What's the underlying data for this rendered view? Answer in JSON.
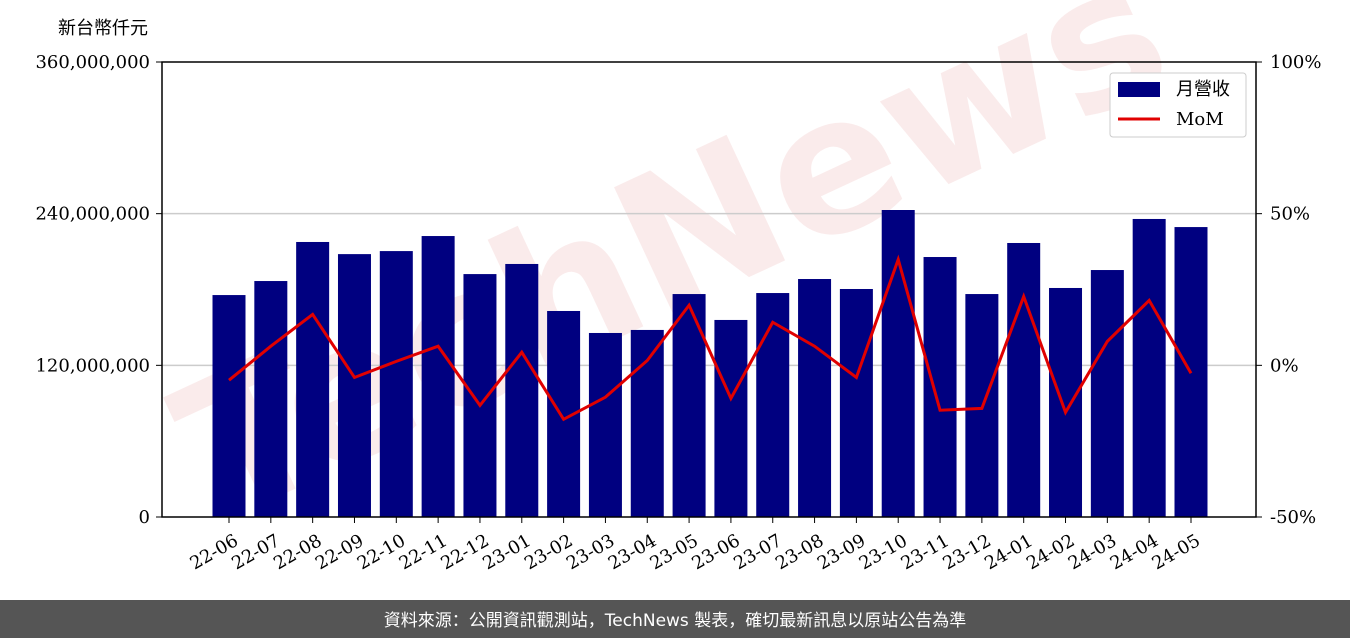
{
  "chart_data": {
    "type": "bar-line",
    "y_label": "新台幣仟元",
    "watermark": "TechNews",
    "footer": "資料來源：公開資訊觀測站，TechNews 製表，確切最新訊息以原站公告為準",
    "categories": [
      "22-06",
      "22-07",
      "22-08",
      "22-09",
      "22-10",
      "22-11",
      "22-12",
      "23-01",
      "23-02",
      "23-03",
      "23-04",
      "23-05",
      "23-06",
      "23-07",
      "23-08",
      "23-09",
      "23-10",
      "23-11",
      "23-12",
      "24-01",
      "24-02",
      "24-03",
      "24-04",
      "24-05"
    ],
    "series": [
      {
        "name": "月營收",
        "type": "bar",
        "color": "#000080",
        "values": [
          175600000,
          186700000,
          217600000,
          208000000,
          210400000,
          222300000,
          192200000,
          200200000,
          163000000,
          145600000,
          148000000,
          176400000,
          155900000,
          177200000,
          188300000,
          180400000,
          242900000,
          205700000,
          176400000,
          216800000,
          181200000,
          195400000,
          235800000,
          229400000
        ]
      },
      {
        "name": "MoM",
        "type": "line",
        "axis": "y2",
        "color": "#e00000",
        "values": [
          -4.9,
          6.3,
          16.8,
          -4.0,
          1.3,
          6.3,
          -13.2,
          4.3,
          -17.8,
          -10.5,
          1.6,
          19.8,
          -10.9,
          14.2,
          6.3,
          -4.0,
          34.9,
          -14.8,
          -14.2,
          22.7,
          -15.5,
          7.9,
          21.4,
          -2.6
        ]
      }
    ],
    "ylim": [
      0,
      360000000
    ],
    "yticks": [
      {
        "value": 0,
        "label": "0"
      },
      {
        "value": 120000000,
        "label": "120,000,000"
      },
      {
        "value": 240000000,
        "label": "240,000,000"
      },
      {
        "value": 360000000,
        "label": "360,000,000"
      }
    ],
    "y2lim": [
      -50,
      100
    ],
    "y2ticks": [
      {
        "value": -50,
        "label": "-50%"
      },
      {
        "value": 0,
        "label": "0%"
      },
      {
        "value": 50,
        "label": "50%"
      },
      {
        "value": 100,
        "label": "100%"
      }
    ],
    "grid": true,
    "legend": "upper right"
  }
}
